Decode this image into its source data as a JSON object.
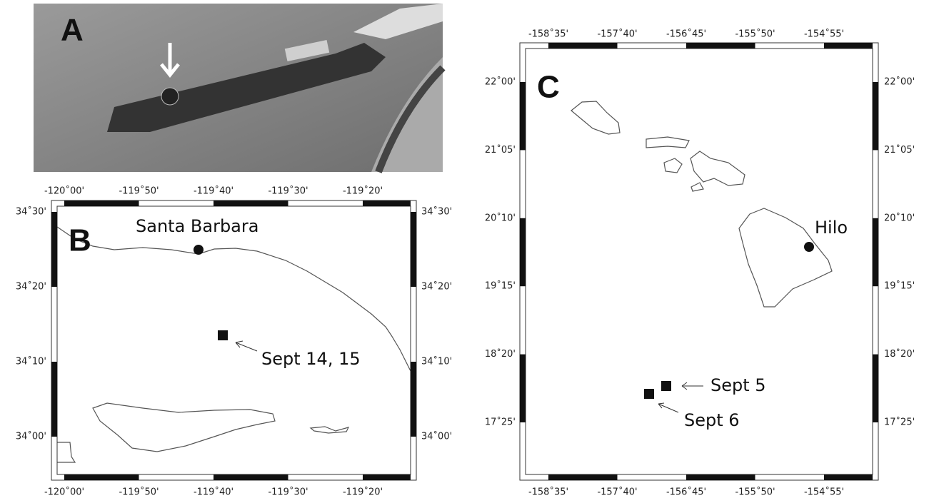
{
  "panels": {
    "A": {
      "label": "A"
    },
    "B": {
      "label": "B",
      "x_ticks": [
        "-120˚00'",
        "-119˚50'",
        "-119˚40'",
        "-119˚30'",
        "-119˚20'"
      ],
      "y_ticks": [
        "34˚30'",
        "34˚20'",
        "34˚10'",
        "34˚00'"
      ],
      "places": [
        {
          "label": "Santa Barbara"
        },
        {
          "label": "Sept 14, 15"
        }
      ]
    },
    "C": {
      "label": "C",
      "x_ticks": [
        "-158˚35'",
        "-157˚40'",
        "-156˚45'",
        "-155˚50'",
        "-154˚55'"
      ],
      "y_ticks": [
        "22˚00'",
        "21˚05'",
        "20˚10'",
        "19˚15'",
        "18˚20'",
        "17˚25'"
      ],
      "places": [
        {
          "label": "Hilo"
        },
        {
          "label": "Sept 5"
        },
        {
          "label": "Sept 6"
        }
      ]
    }
  }
}
